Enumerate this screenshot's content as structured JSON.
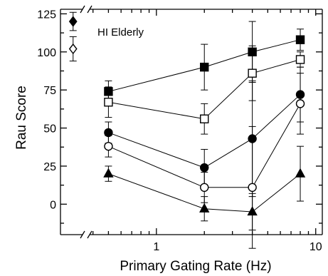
{
  "chart_data": {
    "type": "line",
    "xlabel": "Primary Gating Rate (Hz)",
    "ylabel": "Rau Score",
    "x_scale": "log",
    "xlim": [
      0.25,
      11
    ],
    "ylim": [
      -20,
      128
    ],
    "x_ticks": [
      1,
      10
    ],
    "x_tick_labels": [
      "1",
      "10"
    ],
    "y_ticks": [
      0,
      25,
      50,
      75,
      100,
      125
    ],
    "y_tick_labels": [
      "0",
      "25",
      "50",
      "75",
      "100",
      "125"
    ],
    "axis_break": "between reference points and data",
    "annotation": "HI Elderly",
    "x": [
      0.5,
      2,
      4,
      8
    ],
    "series": [
      {
        "marker": "filled-square",
        "values": [
          74,
          90,
          100,
          108
        ],
        "errors": [
          7,
          15,
          20,
          7
        ]
      },
      {
        "marker": "open-square",
        "values": [
          67,
          56,
          86,
          95
        ],
        "errors": [
          10,
          10,
          18,
          5
        ]
      },
      {
        "marker": "filled-circle",
        "values": [
          47,
          24,
          43,
          72
        ],
        "errors": [
          7,
          12,
          38,
          18
        ]
      },
      {
        "marker": "open-circle",
        "values": [
          38,
          11,
          11,
          66
        ],
        "errors": [
          7,
          10,
          40,
          20
        ]
      },
      {
        "marker": "filled-triangle",
        "values": [
          20,
          -3,
          -5,
          20
        ],
        "errors": [
          5,
          8,
          12,
          18
        ]
      }
    ],
    "reference_points": [
      {
        "marker": "filled-diamond",
        "x": 0.3,
        "value": 120,
        "error": 6
      },
      {
        "marker": "open-diamond",
        "x": 0.3,
        "value": 102,
        "error": 8
      }
    ]
  }
}
